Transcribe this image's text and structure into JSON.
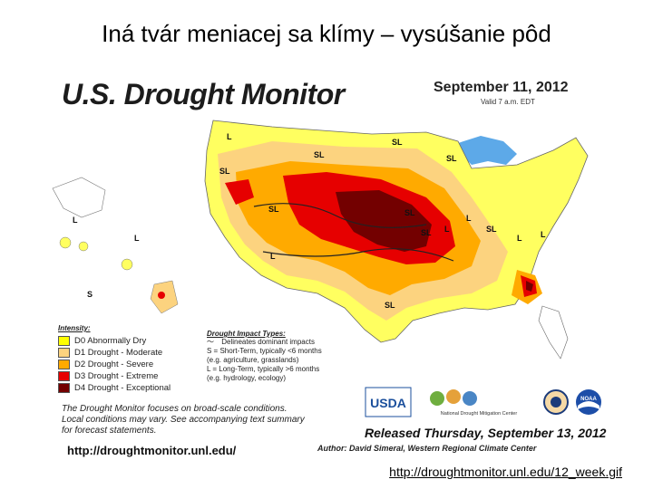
{
  "slide": {
    "title": "Iná tvár meniacej sa klímy – vysúšanie pôd",
    "link": "http://droughtmonitor.unl.edu/12_week.gif"
  },
  "map": {
    "header": "U.S. Drought Monitor",
    "date": "September 11, 2012",
    "valid": "Valid 7 a.m. EDT",
    "labels": [
      "L",
      "L",
      "SL",
      "SL",
      "SL",
      "SL",
      "SL",
      "SL",
      "L",
      "L",
      "SL",
      "L",
      "L",
      "L",
      "SL",
      "SL",
      "L",
      "S"
    ],
    "intensity_title": "Intensity:",
    "intensity": [
      {
        "label": "D0 Abnormally Dry",
        "color": "#ffff00"
      },
      {
        "label": "D1 Drought - Moderate",
        "color": "#fcd37f"
      },
      {
        "label": "D2 Drought - Severe",
        "color": "#ffaa00"
      },
      {
        "label": "D3 Drought - Extreme",
        "color": "#e60000"
      },
      {
        "label": "D4 Drought - Exceptional",
        "color": "#730000"
      }
    ],
    "impact_title": "Drought Impact Types:",
    "impact_lines": [
      "Delineates dominant impacts",
      "S = Short-Term, typically <6 months",
      "(e.g. agriculture, grasslands)",
      "L = Long-Term, typically >6 months",
      "(e.g. hydrology, ecology)"
    ],
    "note_lines": [
      "The Drought Monitor focuses on broad-scale conditions.",
      "Local conditions may vary. See accompanying text summary",
      "for forecast statements."
    ],
    "url": "http://droughtmonitor.unl.edu/",
    "logos": {
      "usda": "USDA",
      "ndmc": "National Drought Mitigation Center",
      "noaa": "NOAA"
    },
    "released": "Released Thursday, September 13, 2012",
    "author": "Author: David Simeral, Western Regional Climate Center"
  }
}
